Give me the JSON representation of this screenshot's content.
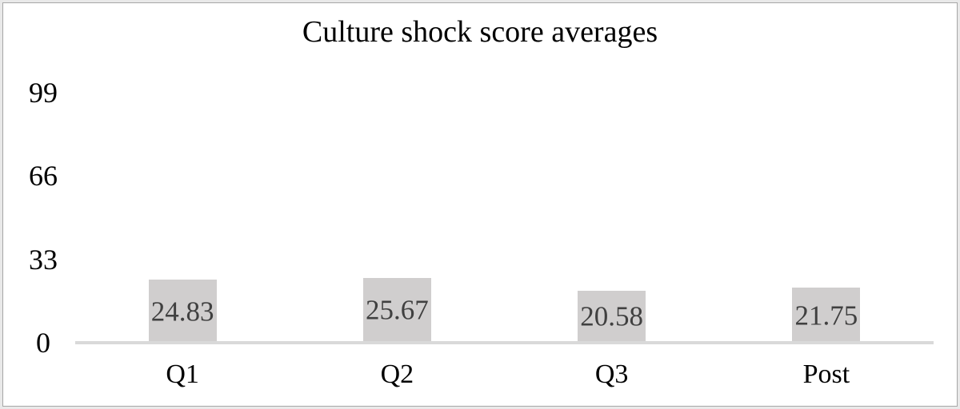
{
  "chart_data": {
    "type": "bar",
    "title": "Culture shock score averages",
    "categories": [
      "Q1",
      "Q2",
      "Q3",
      "Post"
    ],
    "values": [
      24.83,
      25.67,
      20.58,
      21.75
    ],
    "value_labels": [
      "24.83",
      "25.67",
      "20.58",
      "21.75"
    ],
    "y_ticks": [
      0,
      33,
      66,
      99
    ],
    "ylim": [
      0,
      99
    ],
    "xlabel": "",
    "ylabel": "",
    "grid": false,
    "legend": false,
    "colors": {
      "bar_fill": "#d0cece",
      "value_label": "#404040",
      "axis_line": "#d9d9d9",
      "text": "#000000",
      "frame_outer": "#e9e9e9",
      "frame_line": "#a6a6a6"
    }
  }
}
